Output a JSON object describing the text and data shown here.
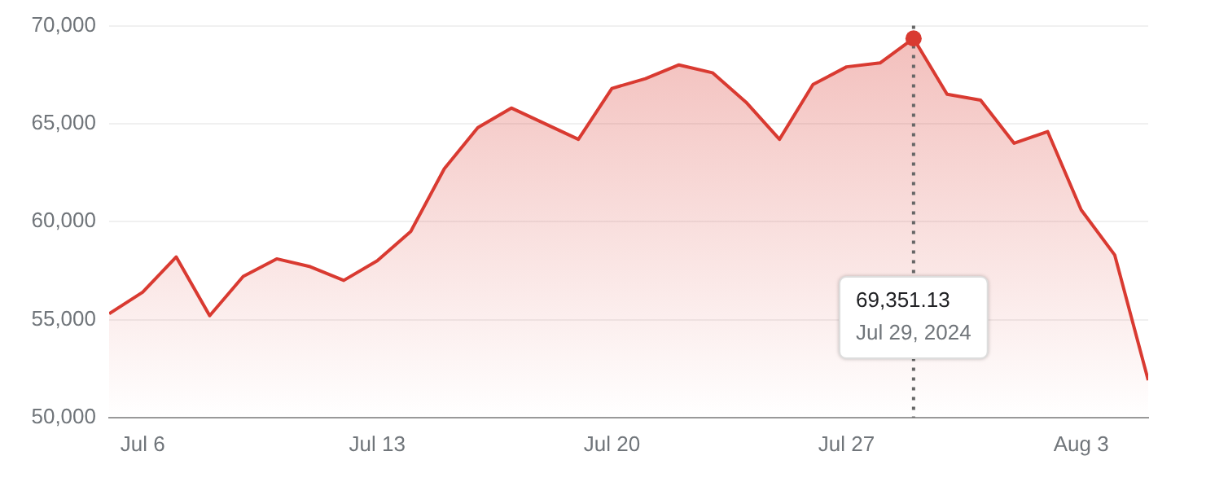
{
  "chart_data": {
    "type": "area",
    "x": [
      "2024-07-05",
      "2024-07-06",
      "2024-07-07",
      "2024-07-08",
      "2024-07-09",
      "2024-07-10",
      "2024-07-11",
      "2024-07-12",
      "2024-07-13",
      "2024-07-14",
      "2024-07-15",
      "2024-07-16",
      "2024-07-17",
      "2024-07-18",
      "2024-07-19",
      "2024-07-20",
      "2024-07-21",
      "2024-07-22",
      "2024-07-23",
      "2024-07-24",
      "2024-07-25",
      "2024-07-26",
      "2024-07-27",
      "2024-07-28",
      "2024-07-29",
      "2024-07-30",
      "2024-07-31",
      "2024-08-01",
      "2024-08-02",
      "2024-08-03",
      "2024-08-04",
      "2024-08-05"
    ],
    "series": [
      {
        "color": "#d93a31",
        "values": [
          55300,
          56400,
          58200,
          55200,
          57200,
          58100,
          57700,
          57000,
          58000,
          59500,
          62700,
          64800,
          65800,
          65000,
          64200,
          66800,
          67300,
          68000,
          67600,
          66100,
          64200,
          67000,
          67900,
          68100,
          69351.13,
          66500,
          66200,
          64000,
          64600,
          60600,
          58300,
          51900
        ]
      }
    ],
    "xlim": [
      "2024-07-05",
      "2024-08-05"
    ],
    "xticks": [
      {
        "value": "2024-07-06",
        "label": "Jul 6"
      },
      {
        "value": "2024-07-13",
        "label": "Jul 13"
      },
      {
        "value": "2024-07-20",
        "label": "Jul 20"
      },
      {
        "value": "2024-07-27",
        "label": "Jul 27"
      },
      {
        "value": "2024-08-03",
        "label": "Aug 3"
      }
    ],
    "ylim": [
      50000,
      70000
    ],
    "yticks": [
      {
        "value": 50000,
        "label": "50,000"
      },
      {
        "value": 55000,
        "label": "55,000"
      },
      {
        "value": 60000,
        "label": "60,000"
      },
      {
        "value": 65000,
        "label": "65,000"
      },
      {
        "value": 70000,
        "label": "70,000"
      }
    ],
    "grid": "y",
    "legend": false,
    "marker": "none",
    "line_style": "solid",
    "ref_lines": [
      {
        "axis": "x",
        "value": "2024-07-29",
        "line_style": "dotted",
        "color": "#666666"
      }
    ],
    "annotations": [
      "69,351.13",
      "Jul 29, 2024"
    ]
  }
}
